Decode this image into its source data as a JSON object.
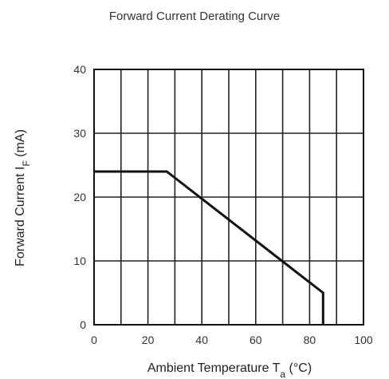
{
  "chart_data": {
    "type": "line",
    "title": "Forward Current Derating Curve",
    "xlabel": {
      "main": "Ambient Temperature T",
      "sub": "a",
      "unit": " (°C)"
    },
    "ylabel": {
      "main": "Forward Current I",
      "sub": "F",
      "unit": " (mA)"
    },
    "xlim": [
      0,
      100
    ],
    "ylim": [
      0,
      40
    ],
    "xticks": [
      "0",
      "20",
      "40",
      "60",
      "80",
      "100"
    ],
    "yticks": [
      "0",
      "10",
      "20",
      "30",
      "40"
    ],
    "x_grid": [
      0,
      10,
      20,
      30,
      40,
      50,
      60,
      70,
      80,
      90,
      100
    ],
    "y_grid": [
      0,
      10,
      20,
      30,
      40
    ],
    "grid": true,
    "series": [
      {
        "x": [
          0,
          27,
          85,
          85
        ],
        "y": [
          24,
          24,
          5,
          0
        ],
        "color": "#111111"
      }
    ]
  }
}
